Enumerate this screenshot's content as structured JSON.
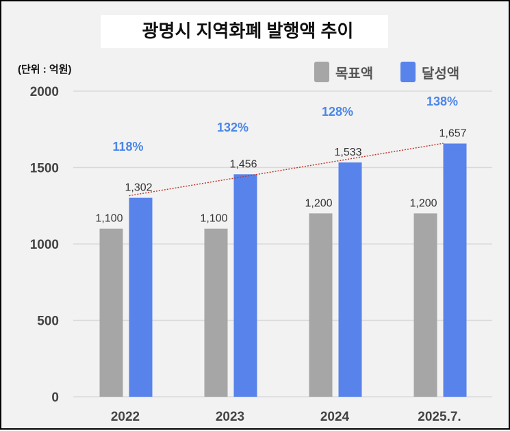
{
  "chart_data": {
    "type": "bar",
    "title": "광명시 지역화폐 발행액 추이",
    "unit_label": "(단위 : 억원)",
    "categories": [
      "2022",
      "2023",
      "2024",
      "2025.7."
    ],
    "series": [
      {
        "name": "목표액",
        "color": "#a6a6a6",
        "values": [
          1100,
          1100,
          1200,
          1200
        ],
        "labels": [
          "1,100",
          "1,100",
          "1,200",
          "1,200"
        ]
      },
      {
        "name": "달성액",
        "color": "#5783ea",
        "values": [
          1302,
          1456,
          1533,
          1657
        ],
        "labels": [
          "1,302",
          "1,456",
          "1,533",
          "1,657"
        ]
      }
    ],
    "achievement_rates": [
      "118%",
      "132%",
      "128%",
      "138%"
    ],
    "achievement_color": "#4a86e8",
    "trendline": {
      "series": "달성액",
      "style": "dotted",
      "color": "#c0392b"
    },
    "ylim": [
      0,
      2000
    ],
    "yticks": [
      0,
      500,
      1000,
      1500,
      2000
    ],
    "grid": true,
    "legend_position": "top-right"
  }
}
